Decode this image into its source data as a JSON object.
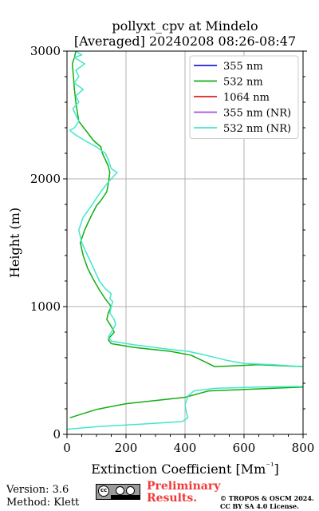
{
  "chart_data": {
    "type": "line",
    "title": [
      "pollyxt_cpv at Mindelo",
      "[Averaged] 20240208 08:26-08:47"
    ],
    "xlabel": "Extinction Coefficient [Mm⁻¹]",
    "ylabel": "Height (m)",
    "xlim": [
      0,
      800
    ],
    "ylim": [
      0,
      3000
    ],
    "xticks": [
      "0",
      "200",
      "400",
      "600",
      "800"
    ],
    "yticks": [
      "0",
      "1000",
      "2000",
      "3000"
    ],
    "grid": true,
    "legend_position": "top-right",
    "series": [
      {
        "name": "355 nm",
        "color": "#1f1fd6",
        "x": [],
        "y": []
      },
      {
        "name": "532 nm",
        "color": "#13ad13",
        "x": [
          1000,
          800,
          480,
          400,
          300,
          200,
          100,
          10
        ],
        "y": [
          380,
          370,
          340,
          290,
          265,
          240,
          195,
          130
        ]
      },
      {
        "name": "532 nm",
        "color": "#13ad13",
        "x": [
          800,
          650,
          500,
          470,
          420,
          350,
          230,
          150,
          140,
          145,
          160,
          150,
          135,
          140,
          150,
          130,
          110,
          90,
          70,
          55,
          45,
          60,
          80,
          100,
          115,
          135,
          140,
          145,
          140,
          120,
          115,
          90,
          40,
          30,
          25,
          22,
          20,
          18,
          25,
          30
        ],
        "y": [
          530,
          545,
          530,
          565,
          620,
          650,
          680,
          710,
          740,
          760,
          800,
          845,
          900,
          950,
          1000,
          1060,
          1130,
          1210,
          1300,
          1400,
          1500,
          1600,
          1700,
          1790,
          1830,
          1900,
          1960,
          2050,
          2100,
          2200,
          2250,
          2300,
          2450,
          2600,
          2700,
          2800,
          2850,
          2900,
          2950,
          3000
        ]
      },
      {
        "name": "1064 nm",
        "color": "#e01e1e",
        "x": [],
        "y": []
      },
      {
        "name": "355 nm (NR)",
        "color": "#a050e6",
        "x": [],
        "y": []
      },
      {
        "name": "532 nm (NR)",
        "color": "#40e8cc",
        "x": [
          0,
          100,
          250,
          390,
          410,
          405,
          400,
          410,
          430,
          500,
          650,
          800
        ],
        "y": [
          40,
          60,
          80,
          100,
          130,
          170,
          230,
          300,
          340,
          360,
          370,
          375
        ]
      },
      {
        "name": "532 nm (NR)",
        "color": "#40e8cc",
        "x": [
          800,
          700,
          600,
          540,
          470,
          410,
          330,
          230,
          150,
          140,
          150,
          165,
          160,
          145,
          150,
          155,
          145,
          150,
          130,
          110,
          90,
          70,
          50,
          40,
          55,
          80,
          100,
          115,
          135,
          150,
          170,
          150,
          140,
          130,
          100,
          60,
          25,
          10,
          25,
          40,
          20,
          40,
          30,
          55,
          25,
          40,
          30,
          60,
          25,
          50,
          30
        ],
        "y": [
          530,
          545,
          555,
          580,
          620,
          650,
          670,
          700,
          730,
          760,
          800,
          860,
          900,
          950,
          1000,
          1040,
          1060,
          1100,
          1140,
          1200,
          1300,
          1400,
          1500,
          1600,
          1700,
          1780,
          1850,
          1900,
          1960,
          2000,
          2050,
          2080,
          2150,
          2200,
          2250,
          2300,
          2350,
          2380,
          2400,
          2450,
          2550,
          2600,
          2650,
          2700,
          2750,
          2800,
          2850,
          2900,
          2950,
          2970,
          3000
        ]
      }
    ]
  },
  "footer": {
    "version": "Version: 3.6",
    "method": "Method: Klett",
    "preliminary": [
      "Preliminary",
      "Results."
    ],
    "copyright": [
      "© TROPOS & OSCM 2024.",
      "CC BY SA 4.0 License."
    ],
    "license_badge": "cc-by-sa-icon"
  }
}
